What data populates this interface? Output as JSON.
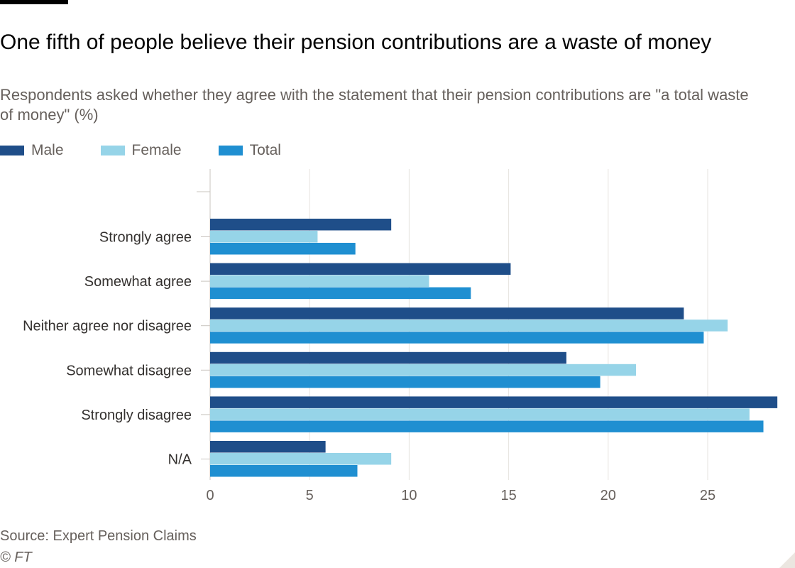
{
  "header": {
    "title": "One fifth of people believe their pension contributions are a waste of money",
    "subtitle": "Respondents asked whether they agree with the statement that their pension contributions are \"a total waste of money\" (%)"
  },
  "footer": {
    "source": "Source: Expert Pension Claims",
    "copyright": "© FT"
  },
  "chart_data": {
    "type": "bar",
    "orientation": "horizontal",
    "title": "One fifth of people believe their pension contributions are a waste of money",
    "subtitle": "Respondents asked whether they agree with the statement that their pension contributions are \"a total waste of money\" (%)",
    "xlabel": "",
    "ylabel": "",
    "categories": [
      "Strongly agree",
      "Somewhat agree",
      "Neither agree nor disagree",
      "Somewhat disagree",
      "Strongly disagree",
      "N/A"
    ],
    "series": [
      {
        "name": "Male",
        "color": "#1f4e89",
        "values": [
          9.1,
          15.1,
          23.8,
          17.9,
          28.5,
          5.8
        ]
      },
      {
        "name": "Female",
        "color": "#96d4e8",
        "values": [
          5.4,
          11.0,
          26.0,
          21.4,
          27.1,
          9.1
        ]
      },
      {
        "name": "Total",
        "color": "#1f8fd1",
        "values": [
          7.3,
          13.1,
          24.8,
          19.6,
          27.8,
          7.4
        ]
      }
    ],
    "xlim": [
      0,
      29
    ],
    "xticks": [
      0,
      5,
      10,
      15,
      20,
      25
    ],
    "grid": true,
    "legend": "top-left"
  }
}
